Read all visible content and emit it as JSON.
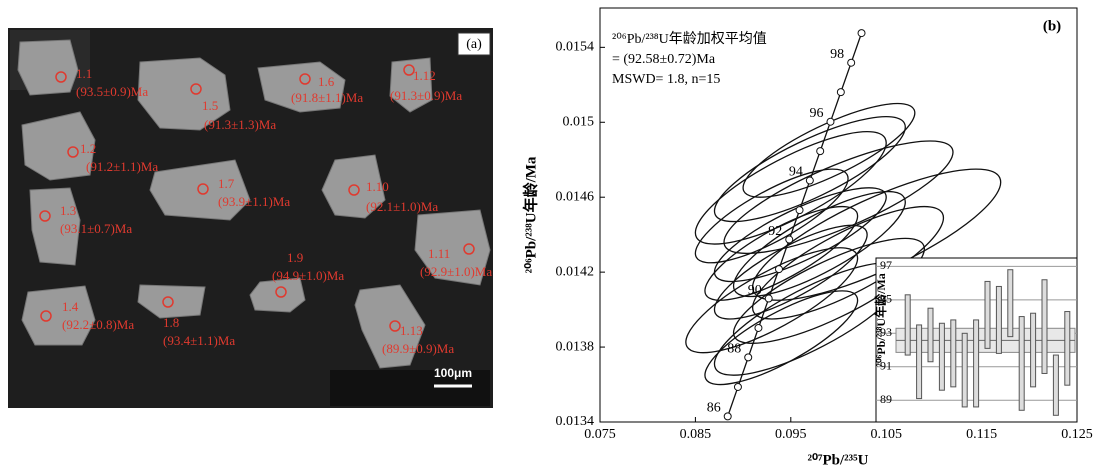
{
  "panel_a": {
    "label": "(a)",
    "scale_bar": "100μm",
    "spots": [
      {
        "id": "1.1",
        "age": "(93.5±0.9)Ma"
      },
      {
        "id": "1.2",
        "age": "(91.2±1.1)Ma"
      },
      {
        "id": "1.3",
        "age": "(93.1±0.7)Ma"
      },
      {
        "id": "1.4",
        "age": "(92.2±0.8)Ma"
      },
      {
        "id": "1.5",
        "age": "(91.3±1.3)Ma"
      },
      {
        "id": "1.6",
        "age": "(91.8±1.1)Ma"
      },
      {
        "id": "1.7",
        "age": "(93.9±1.1)Ma"
      },
      {
        "id": "1.8",
        "age": "(93.4±1.1)Ma"
      },
      {
        "id": "1.9",
        "age": "(94.9±1.0)Ma"
      },
      {
        "id": "1.10",
        "age": "(92.1±1.0)Ma"
      },
      {
        "id": "1.11",
        "age": "(92.9±1.0)Ma"
      },
      {
        "id": "1.12",
        "age": "(91.3±0.9)Ma"
      },
      {
        "id": "1.13",
        "age": "(89.9±0.9)Ma"
      }
    ]
  },
  "chart_data": {
    "type": "concordia",
    "panel_label": "(b)",
    "annotation": [
      "²⁰⁶Pb/²³⁸U年龄加权平均值",
      "= (92.58±0.72)Ma",
      "MSWD= 1.8, n=15"
    ],
    "x_label": "²⁰⁷Pb/²³⁵U",
    "y_label": "²⁰⁶Pb/²³⁸U年龄/Ma",
    "xlim": [
      0.075,
      0.125
    ],
    "xticks": [
      0.075,
      0.085,
      0.095,
      0.105,
      0.115,
      0.125
    ],
    "ylim": [
      0.0134,
      0.01561
    ],
    "yticks": [
      0.0134,
      0.0138,
      0.0142,
      0.0146,
      0.015,
      0.0154
    ],
    "concordia": {
      "labels": [
        86,
        null,
        88,
        null,
        90,
        null,
        92,
        null,
        94,
        null,
        96,
        null,
        98,
        null
      ],
      "x": [
        0.088387,
        0.08946,
        0.090537,
        0.091608,
        0.092683,
        0.093761,
        0.094838,
        0.095918,
        0.096996,
        0.098082,
        0.09916,
        0.100245,
        0.101329,
        0.102414
      ],
      "y": [
        0.01343,
        0.013587,
        0.013745,
        0.013902,
        0.014059,
        0.014216,
        0.014374,
        0.014531,
        0.014689,
        0.014846,
        0.015003,
        0.015161,
        0.015318,
        0.015476
      ]
    },
    "ellipses": {
      "x": [
        0.095,
        0.097,
        0.099,
        0.093,
        0.1,
        0.096,
        0.094,
        0.098,
        0.101,
        0.095,
        0.099,
        0.104,
        0.093,
        0.097,
        0.094
      ],
      "y": [
        0.01465,
        0.01475,
        0.01485,
        0.0145,
        0.0146,
        0.0144,
        0.0143,
        0.01435,
        0.01425,
        0.0142,
        0.0141,
        0.0144,
        0.01405,
        0.01395,
        0.01385
      ],
      "x_err": [
        0.01,
        0.01,
        0.009,
        0.008,
        0.012,
        0.009,
        0.008,
        0.009,
        0.01,
        0.008,
        0.01,
        0.013,
        0.009,
        0.01,
        0.008
      ],
      "y_err": [
        0.0003,
        0.00028,
        0.00025,
        0.00025,
        0.0003,
        0.00025,
        0.00025,
        0.00028,
        0.0003,
        0.00025,
        0.00028,
        0.00035,
        0.00028,
        0.0003,
        0.00025
      ],
      "rho": [
        0.8,
        0.8,
        0.8,
        0.8,
        0.8,
        0.8,
        0.8,
        0.8,
        0.8,
        0.8,
        0.8,
        0.8,
        0.8,
        0.8,
        0.8
      ]
    },
    "inset": {
      "y_label": "²⁰⁶Pb/²³⁸U年龄/Ma",
      "ylim": [
        87.7,
        97.5
      ],
      "yticks": [
        89,
        91,
        93,
        95,
        97
      ],
      "values": [
        93.5,
        91.3,
        92.9,
        91.6,
        91.8,
        90.8,
        91.2,
        94.1,
        93.8,
        94.8,
        91.2,
        92.0,
        93.4,
        89.9,
        92.1
      ],
      "errors": [
        1.8,
        2.2,
        1.6,
        2.0,
        2.0,
        2.2,
        2.6,
        2.0,
        2.0,
        2.0,
        2.8,
        2.2,
        2.8,
        1.8,
        2.2
      ],
      "mean": 92.58,
      "mean_err": 0.72
    }
  }
}
